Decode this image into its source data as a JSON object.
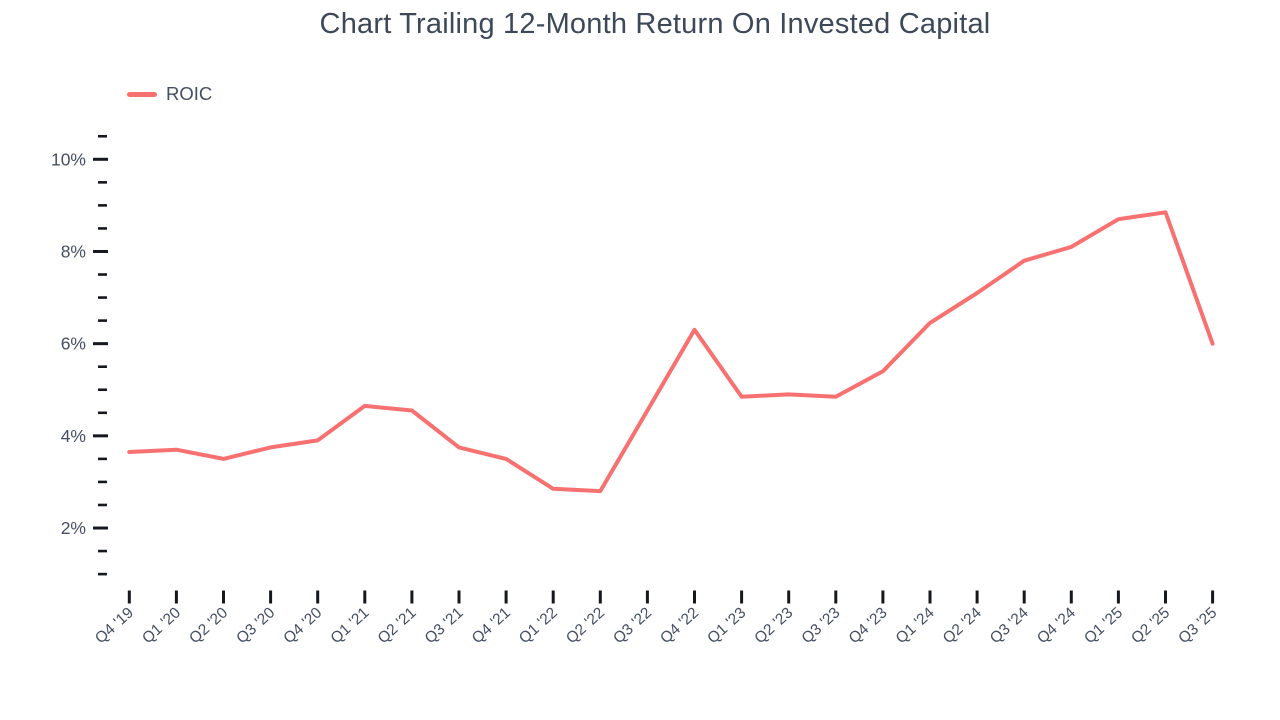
{
  "chart_data": {
    "type": "line",
    "title": "Chart Trailing 12-Month Return On Invested Capital",
    "xlabel": "",
    "ylabel": "",
    "grid": false,
    "legend_position": "top-left",
    "categories": [
      "Q4 '19",
      "Q1 '20",
      "Q2 '20",
      "Q3 '20",
      "Q4 '20",
      "Q1 '21",
      "Q2 '21",
      "Q3 '21",
      "Q4 '21",
      "Q1 '22",
      "Q2 '22",
      "Q3 '22",
      "Q4 '22",
      "Q1 '23",
      "Q2 '23",
      "Q3 '23",
      "Q4 '23",
      "Q1 '24",
      "Q2 '24",
      "Q3 '24",
      "Q4 '24",
      "Q1 '25",
      "Q2 '25",
      "Q3 '25"
    ],
    "series": [
      {
        "name": "ROIC",
        "color": "#f87171",
        "values": [
          3.65,
          3.7,
          3.5,
          3.75,
          3.9,
          4.65,
          4.55,
          3.75,
          3.5,
          2.85,
          2.8,
          4.55,
          6.3,
          4.85,
          4.9,
          4.85,
          5.4,
          6.45,
          7.1,
          7.8,
          8.1,
          8.7,
          8.85,
          6.0
        ]
      }
    ],
    "y_axis": {
      "unit": "%",
      "major_ticks": [
        10,
        8,
        6,
        4,
        2
      ],
      "major_tick_labels": [
        "10%",
        "8%",
        "6%",
        "4%",
        "2%"
      ],
      "minor_tick_step": 0.5,
      "range_top": 10.5,
      "range_bottom": 1.0
    },
    "x_axis": {
      "label_rotation_deg": -42
    },
    "colors": {
      "series": "#f87171",
      "axis_text": "#454f63",
      "tick_marks": "#15181e",
      "title_text": "#3d4859"
    }
  }
}
